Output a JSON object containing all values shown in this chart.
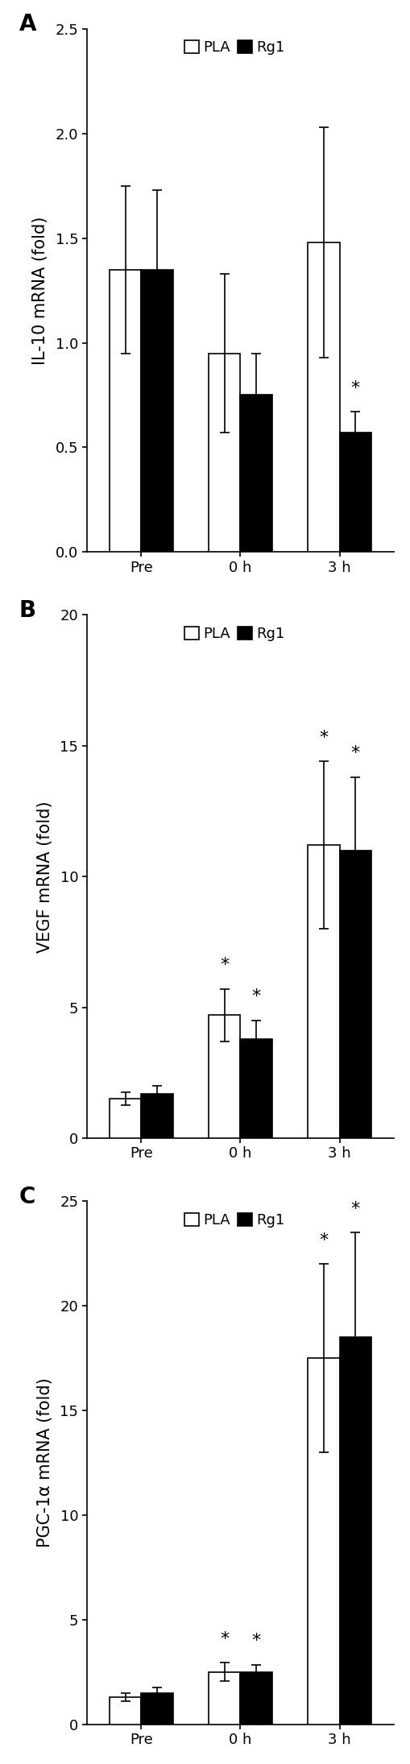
{
  "panels": [
    {
      "label": "A",
      "ylabel": "IL-10 mRNA (fold)",
      "ylim": [
        0,
        2.5
      ],
      "yticks": [
        0.0,
        0.5,
        1.0,
        1.5,
        2.0,
        2.5
      ],
      "categories": [
        "Pre",
        "0 h",
        "3 h"
      ],
      "PLA_values": [
        1.35,
        0.95,
        1.48
      ],
      "Rg1_values": [
        1.35,
        0.75,
        0.57
      ],
      "PLA_errors": [
        0.4,
        0.38,
        0.55
      ],
      "Rg1_errors": [
        0.38,
        0.2,
        0.1
      ],
      "star_PLA": [
        false,
        false,
        false
      ],
      "star_Rg1": [
        false,
        false,
        true
      ]
    },
    {
      "label": "B",
      "ylabel": "VEGF mRNA (fold)",
      "ylim": [
        0,
        20
      ],
      "yticks": [
        0,
        5,
        10,
        15,
        20
      ],
      "categories": [
        "Pre",
        "0 h",
        "3 h"
      ],
      "PLA_values": [
        1.5,
        4.7,
        11.2
      ],
      "Rg1_values": [
        1.7,
        3.8,
        11.0
      ],
      "PLA_errors": [
        0.25,
        1.0,
        3.2
      ],
      "Rg1_errors": [
        0.3,
        0.7,
        2.8
      ],
      "star_PLA": [
        false,
        true,
        true
      ],
      "star_Rg1": [
        false,
        true,
        true
      ]
    },
    {
      "label": "C",
      "ylabel": "PGC-1α mRNA (fold)",
      "ylim": [
        0,
        25
      ],
      "yticks": [
        0,
        5,
        10,
        15,
        20,
        25
      ],
      "categories": [
        "Pre",
        "0 h",
        "3 h"
      ],
      "PLA_values": [
        1.3,
        2.5,
        17.5
      ],
      "Rg1_values": [
        1.5,
        2.5,
        18.5
      ],
      "PLA_errors": [
        0.2,
        0.45,
        4.5
      ],
      "Rg1_errors": [
        0.25,
        0.35,
        5.0
      ],
      "star_PLA": [
        false,
        true,
        true
      ],
      "star_Rg1": [
        false,
        true,
        true
      ]
    }
  ],
  "bar_width": 0.32,
  "PLA_color": "#ffffff",
  "Rg1_color": "#000000",
  "edge_color": "#000000",
  "fontsize_label": 15,
  "fontsize_tick": 13,
  "fontsize_legend": 13,
  "fontsize_panel_label": 20,
  "fontsize_star": 16,
  "cap_size": 4,
  "linewidth": 1.2
}
